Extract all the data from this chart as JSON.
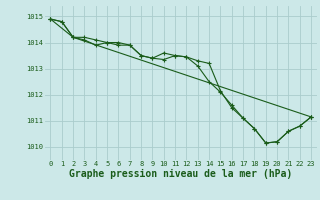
{
  "bg_color": "#cce8e8",
  "grid_color": "#aacccc",
  "line_color": "#1a5c1a",
  "xlim": [
    -0.5,
    23.5
  ],
  "ylim": [
    1009.5,
    1015.4
  ],
  "yticks": [
    1010,
    1011,
    1012,
    1013,
    1014,
    1015
  ],
  "xticks": [
    0,
    1,
    2,
    3,
    4,
    5,
    6,
    7,
    8,
    9,
    10,
    11,
    12,
    13,
    14,
    15,
    16,
    17,
    18,
    19,
    20,
    21,
    22,
    23
  ],
  "series1": {
    "x": [
      0,
      1,
      2,
      3,
      4,
      5,
      6,
      7,
      8,
      9,
      10,
      11,
      12,
      13,
      14,
      15,
      16,
      17,
      18,
      19,
      20,
      21,
      22,
      23
    ],
    "y": [
      1014.9,
      1014.8,
      1014.2,
      1014.1,
      1013.9,
      1014.0,
      1013.9,
      1013.9,
      1013.5,
      1013.4,
      1013.35,
      1013.5,
      1013.45,
      1013.1,
      1012.5,
      1012.1,
      1011.6,
      1011.1,
      1010.7,
      1010.15,
      1010.2,
      1010.6,
      1010.8,
      1011.15
    ]
  },
  "series2": {
    "x": [
      0,
      1,
      2,
      3,
      4,
      5,
      6,
      7,
      8,
      9,
      10,
      11,
      12,
      13,
      14,
      15,
      16,
      17,
      18,
      19,
      20,
      21,
      22,
      23
    ],
    "y": [
      1014.9,
      1014.8,
      1014.2,
      1014.2,
      1014.1,
      1014.0,
      1014.0,
      1013.9,
      1013.5,
      1013.4,
      1013.6,
      1013.5,
      1013.45,
      1013.3,
      1013.2,
      1012.15,
      1011.5,
      1011.1,
      1010.7,
      1010.15,
      1010.2,
      1010.6,
      1010.8,
      1011.15
    ]
  },
  "series3": {
    "x": [
      0,
      2,
      23
    ],
    "y": [
      1014.9,
      1014.2,
      1011.15
    ]
  },
  "xlabel": "Graphe pression niveau de la mer (hPa)",
  "marker": "+",
  "markersize": 3,
  "linewidth": 0.8,
  "xlabel_fontsize": 7,
  "tick_fontsize": 5
}
